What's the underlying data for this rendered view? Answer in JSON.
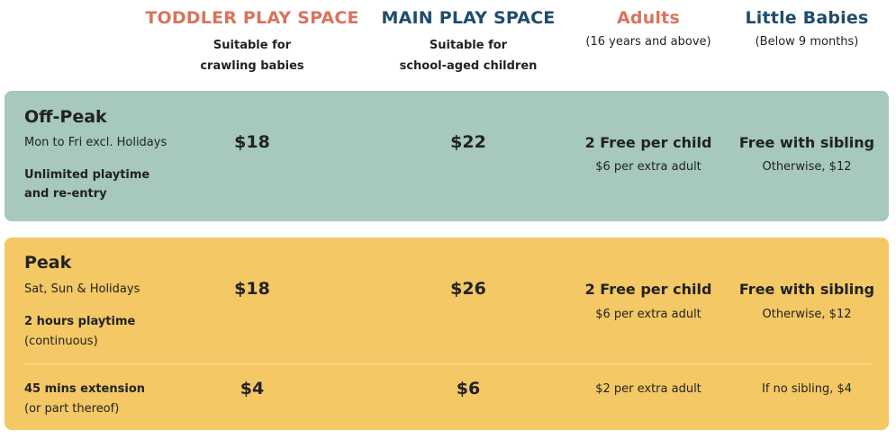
{
  "columns": [
    {
      "title": "TODDLER PLAY SPACE",
      "sub1": "Suitable for",
      "sub2": "crawling babies",
      "color": "#d9735e"
    },
    {
      "title": "MAIN PLAY SPACE",
      "sub1": "Suitable for",
      "sub2": "school-aged children",
      "color": "#1f4d6b"
    },
    {
      "title": "Adults",
      "sub1": "(16 years and above)",
      "color": "#d9735e"
    },
    {
      "title": "Little Babies",
      "sub1": "(Below 9 months)",
      "color": "#1f4d6b"
    }
  ],
  "offpeak": {
    "title": "Off-Peak",
    "days": "Mon to Fri excl. Holidays",
    "note1": "Unlimited playtime",
    "note2": "and re-entry",
    "toddler_price": "$18",
    "main_price": "$22",
    "adults_main": "2 Free per child",
    "adults_sub": "$6 per extra adult",
    "babies_main": "Free with sibling",
    "babies_sub": "Otherwise, $12",
    "color": "#a6c8be"
  },
  "peak": {
    "title": "Peak",
    "days": "Sat, Sun & Holidays",
    "note1": "2 hours playtime",
    "note2": "(continuous)",
    "toddler_price": "$18",
    "main_price": "$26",
    "adults_main": "2 Free per child",
    "adults_sub": "$6 per extra adult",
    "babies_main": "Free with sibling",
    "babies_sub": "Otherwise, $12",
    "color": "#f3c865"
  },
  "extension": {
    "label1": "45 mins extension",
    "label2": "(or part thereof)",
    "toddler_price": "$4",
    "main_price": "$6",
    "adults": "$2 per extra adult",
    "babies": "If no sibling, $4"
  }
}
